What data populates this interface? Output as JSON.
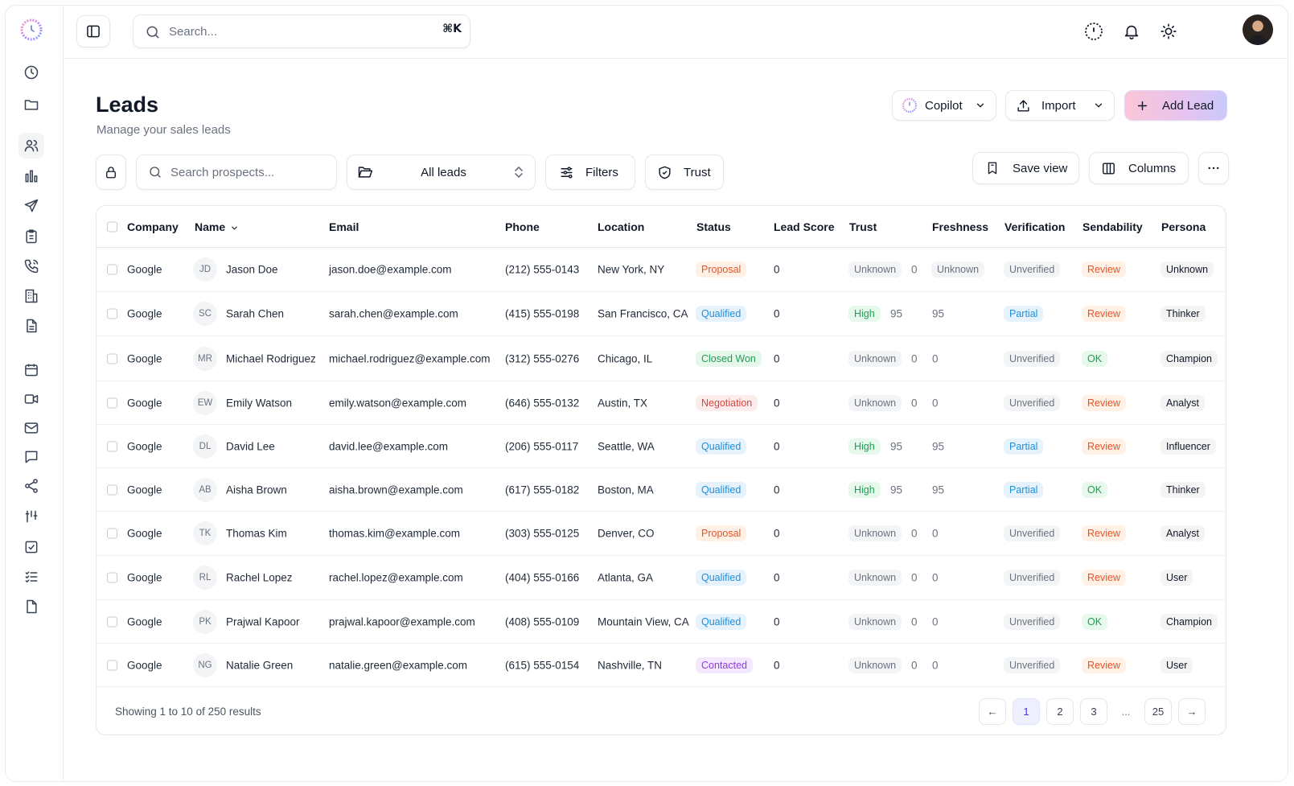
{
  "search": {
    "placeholder": "Search...",
    "shortcut": "⌘K"
  },
  "header": {
    "title": "Leads",
    "subtitle": "Manage your sales leads"
  },
  "actions": {
    "copilot": "Copilot",
    "import": "Import",
    "add_lead": "Add Lead"
  },
  "toolbar": {
    "search_placeholder": "Search prospects...",
    "view_select": "All leads",
    "filters": "Filters",
    "trust": "Trust",
    "save_view": "Save view",
    "columns": "Columns"
  },
  "table": {
    "columns": {
      "company": "Company",
      "name": "Name",
      "email": "Email",
      "phone": "Phone",
      "location": "Location",
      "status": "Status",
      "lead_score": "Lead Score",
      "trust": "Trust",
      "freshness": "Freshness",
      "verification": "Verification",
      "sendability": "Sendability",
      "persona": "Persona"
    },
    "rows": [
      {
        "company": "Google",
        "initials": "JD",
        "name": "Jason Doe",
        "email": "jason.doe@example.com",
        "phone": "(212) 555-0143",
        "location": "New York, NY",
        "status": "Proposal",
        "status_class": "p-proposal",
        "score": "0",
        "trust": "Unknown",
        "trust_class": "t-unknown",
        "trust_num": "0",
        "freshness": "Unknown",
        "verification": "Unverified",
        "verification_class": "v-unverified",
        "sendability": "Review",
        "send_class": "s-review",
        "persona": "Unknown"
      },
      {
        "company": "Google",
        "initials": "SC",
        "name": "Sarah Chen",
        "email": "sarah.chen@example.com",
        "phone": "(415) 555-0198",
        "location": "San Francisco, CA",
        "status": "Qualified",
        "status_class": "p-qualified",
        "score": "0",
        "trust": "High",
        "trust_class": "t-high",
        "trust_num": "95",
        "freshness": "95",
        "verification": "Partial",
        "verification_class": "v-partial",
        "sendability": "Review",
        "send_class": "s-review",
        "persona": "Thinker"
      },
      {
        "company": "Google",
        "initials": "MR",
        "name": "Michael Rodriguez",
        "email": "michael.rodriguez@example.com",
        "phone": "(312) 555-0276",
        "location": "Chicago, IL",
        "status": "Closed Won",
        "status_class": "p-closedwon",
        "score": "0",
        "trust": "Unknown",
        "trust_class": "t-unknown",
        "trust_num": "0",
        "freshness": "0",
        "verification": "Unverified",
        "verification_class": "v-unverified",
        "sendability": "OK",
        "send_class": "s-ok",
        "persona": "Champion"
      },
      {
        "company": "Google",
        "initials": "EW",
        "name": "Emily Watson",
        "email": "emily.watson@example.com",
        "phone": "(646) 555-0132",
        "location": "Austin, TX",
        "status": "Negotiation",
        "status_class": "p-negotiation",
        "score": "0",
        "trust": "Unknown",
        "trust_class": "t-unknown",
        "trust_num": "0",
        "freshness": "0",
        "verification": "Unverified",
        "verification_class": "v-unverified",
        "sendability": "Review",
        "send_class": "s-review",
        "persona": "Analyst"
      },
      {
        "company": "Google",
        "initials": "DL",
        "name": "David Lee",
        "email": "david.lee@example.com",
        "phone": "(206) 555-0117",
        "location": "Seattle, WA",
        "status": "Qualified",
        "status_class": "p-qualified",
        "score": "0",
        "trust": "High",
        "trust_class": "t-high",
        "trust_num": "95",
        "freshness": "95",
        "verification": "Partial",
        "verification_class": "v-partial",
        "sendability": "Review",
        "send_class": "s-review",
        "persona": "Influencer"
      },
      {
        "company": "Google",
        "initials": "AB",
        "name": "Aisha Brown",
        "email": "aisha.brown@example.com",
        "phone": "(617) 555-0182",
        "location": "Boston, MA",
        "status": "Qualified",
        "status_class": "p-qualified",
        "score": "0",
        "trust": "High",
        "trust_class": "t-high",
        "trust_num": "95",
        "freshness": "95",
        "verification": "Partial",
        "verification_class": "v-partial",
        "sendability": "OK",
        "send_class": "s-ok",
        "persona": "Thinker"
      },
      {
        "company": "Google",
        "initials": "TK",
        "name": "Thomas Kim",
        "email": "thomas.kim@example.com",
        "phone": "(303) 555-0125",
        "location": "Denver, CO",
        "status": "Proposal",
        "status_class": "p-proposal",
        "score": "0",
        "trust": "Unknown",
        "trust_class": "t-unknown",
        "trust_num": "0",
        "freshness": "0",
        "verification": "Unverified",
        "verification_class": "v-unverified",
        "sendability": "Review",
        "send_class": "s-review",
        "persona": "Analyst"
      },
      {
        "company": "Google",
        "initials": "RL",
        "name": "Rachel Lopez",
        "email": "rachel.lopez@example.com",
        "phone": "(404) 555-0166",
        "location": "Atlanta, GA",
        "status": "Qualified",
        "status_class": "p-qualified",
        "score": "0",
        "trust": "Unknown",
        "trust_class": "t-unknown",
        "trust_num": "0",
        "freshness": "0",
        "verification": "Unverified",
        "verification_class": "v-unverified",
        "sendability": "Review",
        "send_class": "s-review",
        "persona": "User"
      },
      {
        "company": "Google",
        "initials": "PK",
        "name": "Prajwal Kapoor",
        "email": "prajwal.kapoor@example.com",
        "phone": "(408) 555-0109",
        "location": "Mountain View, CA",
        "status": "Qualified",
        "status_class": "p-qualified",
        "score": "0",
        "trust": "Unknown",
        "trust_class": "t-unknown",
        "trust_num": "0",
        "freshness": "0",
        "verification": "Unverified",
        "verification_class": "v-unverified",
        "sendability": "OK",
        "send_class": "s-ok",
        "persona": "Champion"
      },
      {
        "company": "Google",
        "initials": "NG",
        "name": "Natalie Green",
        "email": "natalie.green@example.com",
        "phone": "(615) 555-0154",
        "location": "Nashville, TN",
        "status": "Contacted",
        "status_class": "p-contacted",
        "score": "0",
        "trust": "Unknown",
        "trust_class": "t-unknown",
        "trust_num": "0",
        "freshness": "0",
        "verification": "Unverified",
        "verification_class": "v-unverified",
        "sendability": "Review",
        "send_class": "s-review",
        "persona": "User"
      }
    ]
  },
  "pagination": {
    "summary": "Showing 1 to 10 of 250 results",
    "prev": "←",
    "next": "→",
    "pages": [
      "1",
      "2",
      "3",
      "...",
      "25"
    ],
    "current": "1"
  }
}
